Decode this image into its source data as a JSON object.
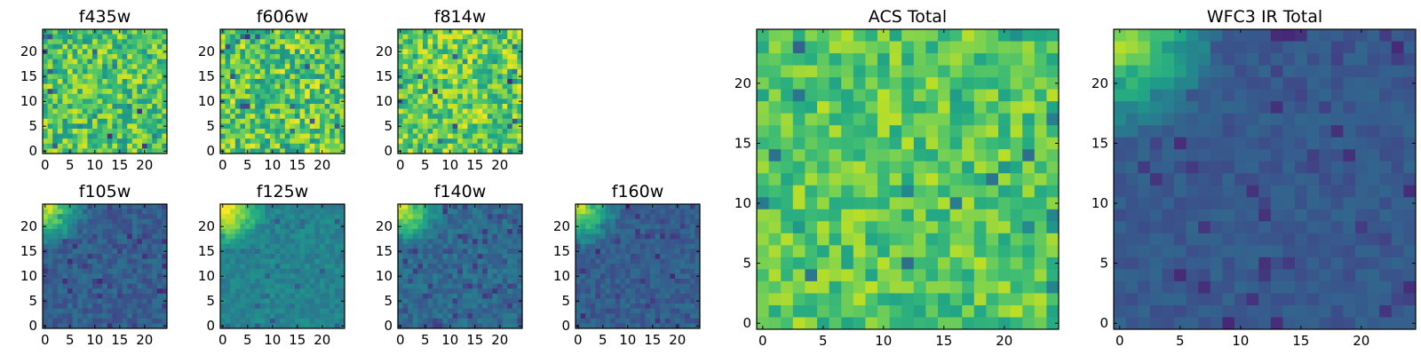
{
  "chart_data": [
    {
      "type": "heatmap",
      "title": "f435w",
      "cmap": "viridis",
      "grid_size": 25,
      "xticks": [
        0,
        5,
        10,
        15,
        20
      ],
      "yticks": [
        0,
        5,
        10,
        15,
        20
      ],
      "texture": "noise",
      "level": 0.72,
      "contrast": 0.22,
      "seed": 11
    },
    {
      "type": "heatmap",
      "title": "f606w",
      "cmap": "viridis",
      "grid_size": 25,
      "xticks": [
        0,
        5,
        10,
        15,
        20
      ],
      "yticks": [
        0,
        5,
        10,
        15,
        20
      ],
      "texture": "noise",
      "level": 0.74,
      "contrast": 0.24,
      "seed": 23
    },
    {
      "type": "heatmap",
      "title": "f814w",
      "cmap": "viridis",
      "grid_size": 25,
      "xticks": [
        0,
        5,
        10,
        15,
        20
      ],
      "yticks": [
        0,
        5,
        10,
        15,
        20
      ],
      "texture": "noise",
      "level": 0.76,
      "contrast": 0.22,
      "seed": 37
    },
    {
      "type": "heatmap",
      "title": "f105w",
      "cmap": "viridis",
      "grid_size": 25,
      "xticks": [
        0,
        5,
        10,
        15,
        20
      ],
      "yticks": [
        0,
        5,
        10,
        15,
        20
      ],
      "texture": "gradient",
      "level": 0.3,
      "contrast": 0.08,
      "seed": 41
    },
    {
      "type": "heatmap",
      "title": "f125w",
      "cmap": "viridis",
      "grid_size": 25,
      "xticks": [
        0,
        5,
        10,
        15,
        20
      ],
      "yticks": [
        0,
        5,
        10,
        15,
        20
      ],
      "texture": "gradient",
      "level": 0.45,
      "contrast": 0.07,
      "seed": 53
    },
    {
      "type": "heatmap",
      "title": "f140w",
      "cmap": "viridis",
      "grid_size": 25,
      "xticks": [
        0,
        5,
        10,
        15,
        20
      ],
      "yticks": [
        0,
        5,
        10,
        15,
        20
      ],
      "texture": "gradient",
      "level": 0.35,
      "contrast": 0.08,
      "seed": 67
    },
    {
      "type": "heatmap",
      "title": "f160w",
      "cmap": "viridis",
      "grid_size": 25,
      "xticks": [
        0,
        5,
        10,
        15,
        20
      ],
      "yticks": [
        0,
        5,
        10,
        15,
        20
      ],
      "texture": "gradient",
      "level": 0.3,
      "contrast": 0.07,
      "seed": 79
    },
    {
      "type": "heatmap",
      "title": "ACS Total",
      "cmap": "viridis",
      "grid_size": 25,
      "xticks": [
        0,
        5,
        10,
        15,
        20
      ],
      "yticks": [
        0,
        5,
        10,
        15,
        20
      ],
      "texture": "noise",
      "level": 0.74,
      "contrast": 0.16,
      "seed": 83
    },
    {
      "type": "heatmap",
      "title": "WFC3 IR Total",
      "cmap": "viridis",
      "grid_size": 25,
      "xticks": [
        0,
        5,
        10,
        15,
        20
      ],
      "yticks": [
        0,
        5,
        10,
        15,
        20
      ],
      "texture": "gradient",
      "level": 0.28,
      "contrast": 0.05,
      "seed": 97
    }
  ]
}
